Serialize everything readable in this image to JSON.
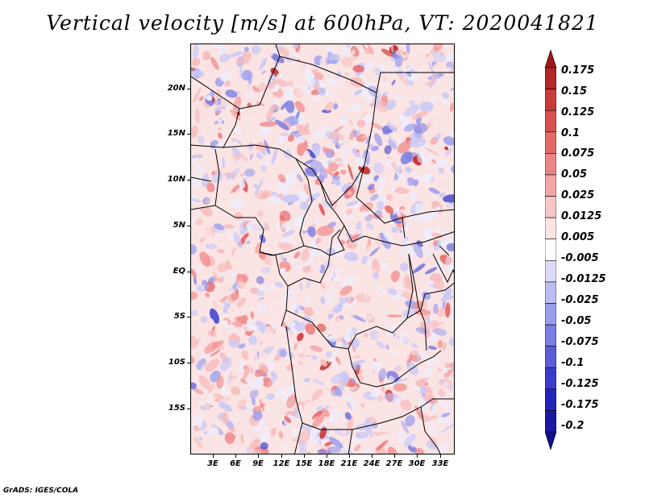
{
  "title": "Vertical velocity [m/s] at 600hPa, VT: 2020041821",
  "footer": "GrADS: IGES/COLA",
  "lat_labels": [
    "20N",
    "15N",
    "10N",
    "5N",
    "EQ",
    "5S",
    "10S",
    "15S"
  ],
  "lon_labels": [
    "3E",
    "6E",
    "9E",
    "12E",
    "15E",
    "18E",
    "21E",
    "24E",
    "27E",
    "30E",
    "33E"
  ],
  "colorbar": {
    "labels": [
      "0.175",
      "0.15",
      "0.125",
      "0.1",
      "0.075",
      "0.05",
      "0.025",
      "0.0125",
      "0.005",
      "-0.005",
      "-0.0125",
      "-0.025",
      "-0.05",
      "-0.075",
      "-0.1",
      "-0.125",
      "-0.175",
      "-0.2"
    ],
    "colors": [
      "#a01818",
      "#b42828",
      "#c83c3c",
      "#d85050",
      "#e46a6a",
      "#ec8686",
      "#f3a6a6",
      "#f8c6c6",
      "#fce4e4",
      "#ffffff",
      "#dcdcfa",
      "#bcbcf4",
      "#9c9cec",
      "#7c7ce2",
      "#5c5cd8",
      "#3c3ccc",
      "#2424b8",
      "#1a1aa0",
      "#10108a"
    ]
  },
  "field_palette": [
    "#fbe2e2",
    "#f7bcbc",
    "#f29090",
    "#e55a5a",
    "#c62a2a",
    "#eeeefc",
    "#c9c9f6",
    "#a2a2ee",
    "#7878e0",
    "#4a4acc"
  ]
}
